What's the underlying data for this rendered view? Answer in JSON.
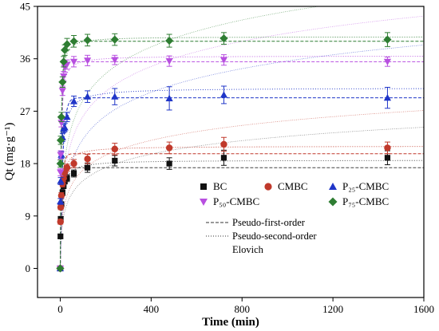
{
  "chart_data": {
    "type": "scatter",
    "xlabel": "Time (min)",
    "ylabel": "Qt (mg·g⁻¹)",
    "xlim": [
      -100,
      1600
    ],
    "ylim": [
      -5,
      45
    ],
    "x_ticks": [
      0,
      400,
      800,
      1200,
      1600
    ],
    "y_ticks": [
      0,
      9,
      18,
      27,
      36,
      45
    ],
    "grid": false,
    "legend_placement": "center-right",
    "x": [
      0,
      1,
      2,
      5,
      10,
      15,
      20,
      30,
      60,
      120,
      240,
      480,
      720,
      1440
    ],
    "series": [
      {
        "name": "BC",
        "marker": "square",
        "color": "#111111",
        "line_color": "#444444",
        "values": [
          0,
          5.5,
          8.5,
          11.0,
          13.0,
          14.2,
          15.0,
          15.5,
          16.3,
          17.3,
          18.5,
          18.0,
          19.0,
          19.0
        ],
        "errors": [
          0,
          0.3,
          0.4,
          0.4,
          0.5,
          0.5,
          0.5,
          0.6,
          0.6,
          0.8,
          0.9,
          1.0,
          1.3,
          1.2
        ],
        "pfo": {
          "qe": 17.3,
          "k": 0.12
        },
        "pso": {
          "qe": 18.6,
          "k": 0.009
        },
        "elovich": {
          "a": 3.0,
          "b": 0.3
        }
      },
      {
        "name": "CMBC",
        "marker": "circle",
        "color": "#c0392b",
        "line_color": "#c0392b",
        "values": [
          0,
          8.0,
          10.5,
          12.5,
          14.5,
          15.5,
          16.5,
          17.3,
          18.0,
          18.8,
          20.5,
          20.7,
          21.3,
          20.7
        ],
        "errors": [
          0,
          0.4,
          0.4,
          0.5,
          0.5,
          0.6,
          0.6,
          0.6,
          0.7,
          0.8,
          1.0,
          1.0,
          1.2,
          1.0
        ],
        "pfo": {
          "qe": 19.7,
          "k": 0.13
        },
        "pso": {
          "qe": 21.0,
          "k": 0.009
        },
        "elovich": {
          "a": 3.5,
          "b": 0.27
        }
      },
      {
        "name": "P₂₅-CMBC",
        "marker": "triangle-up",
        "color": "#1f35c8",
        "line_color": "#1f35c8",
        "values": [
          0,
          11.5,
          15.0,
          19.5,
          22.5,
          24.0,
          24.2,
          26.0,
          28.7,
          29.5,
          29.5,
          29.2,
          29.8,
          29.3
        ],
        "errors": [
          0,
          0.5,
          0.6,
          0.6,
          0.7,
          0.7,
          0.7,
          0.8,
          0.9,
          1.0,
          1.4,
          2.0,
          1.5,
          1.8
        ],
        "pfo": {
          "qe": 29.3,
          "k": 0.09
        },
        "pso": {
          "qe": 31.0,
          "k": 0.005
        },
        "elovich": {
          "a": 2.5,
          "b": 0.17
        }
      },
      {
        "name": "P₅₀-CMBC",
        "marker": "triangle-down",
        "color": "#b84fe0",
        "line_color": "#b84fe0",
        "values": [
          0,
          16.5,
          19.5,
          25.0,
          30.5,
          33.0,
          34.5,
          35.0,
          35.5,
          35.7,
          35.8,
          35.6,
          35.8,
          35.5
        ],
        "errors": [
          0,
          0.6,
          0.7,
          0.7,
          0.8,
          0.8,
          0.8,
          0.8,
          0.9,
          0.9,
          0.8,
          0.9,
          0.9,
          0.8
        ],
        "pfo": {
          "qe": 35.5,
          "k": 0.15
        },
        "pso": {
          "qe": 36.5,
          "k": 0.01
        },
        "elovich": {
          "a": 4.0,
          "b": 0.16
        }
      },
      {
        "name": "P₇₅-CMBC",
        "marker": "diamond",
        "color": "#2e7d32",
        "line_color": "#2e7d32",
        "values": [
          0,
          18.0,
          22.0,
          26.0,
          32.0,
          35.5,
          37.5,
          38.5,
          39.0,
          39.2,
          39.3,
          39.1,
          39.5,
          39.3
        ],
        "errors": [
          0,
          0.6,
          0.7,
          0.8,
          0.9,
          0.9,
          0.9,
          1.0,
          1.0,
          1.0,
          1.0,
          1.1,
          1.0,
          1.2
        ],
        "pfo": {
          "qe": 39.0,
          "k": 0.16
        },
        "pso": {
          "qe": 39.8,
          "k": 0.011
        },
        "elovich": {
          "a": 5.0,
          "b": 0.15
        }
      }
    ],
    "fit_legend": {
      "pfo_label": "Pseudo-first-order",
      "pso_label": "Pseudo-second-order",
      "elovich_label": "Elovich"
    }
  }
}
